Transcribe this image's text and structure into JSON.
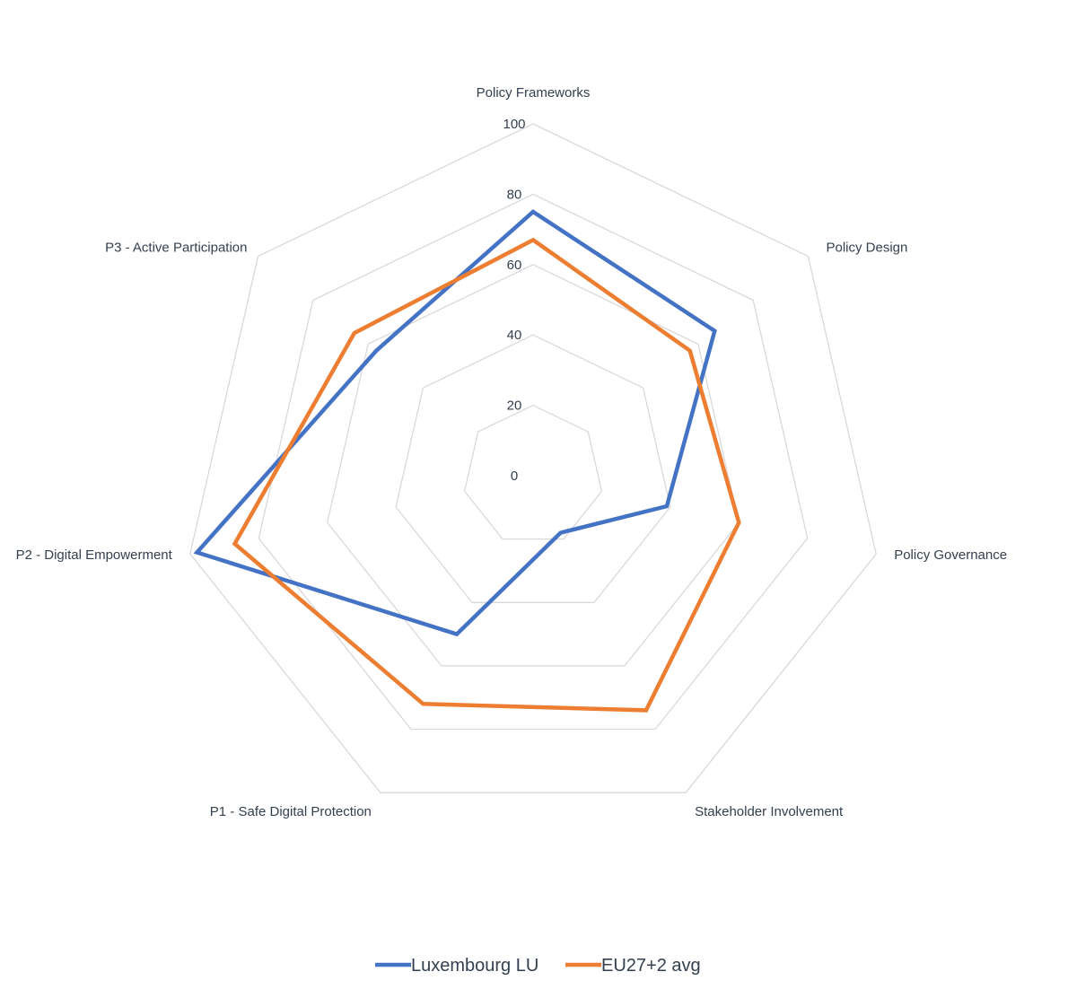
{
  "chart_data": {
    "type": "radar",
    "title": "",
    "axes": [
      "Policy Frameworks",
      "Policy Design",
      "Policy Governance",
      "Stakeholder Involvement",
      "P1 - Safe Digital Protection",
      "P2 - Digital Empowerment",
      "P3 - Active Participation"
    ],
    "ticks": [
      0,
      20,
      40,
      60,
      80,
      100
    ],
    "range": [
      0,
      100
    ],
    "grid": true,
    "legend_position": "bottom",
    "series": [
      {
        "name": "Luxembourg LU",
        "color": "#4472c4",
        "values": [
          75,
          66,
          39,
          18,
          50,
          98,
          57
        ]
      },
      {
        "name": "EU27+2 avg",
        "color": "#ed7d31",
        "values": [
          67,
          57,
          60,
          74,
          72,
          87,
          65
        ]
      }
    ]
  }
}
